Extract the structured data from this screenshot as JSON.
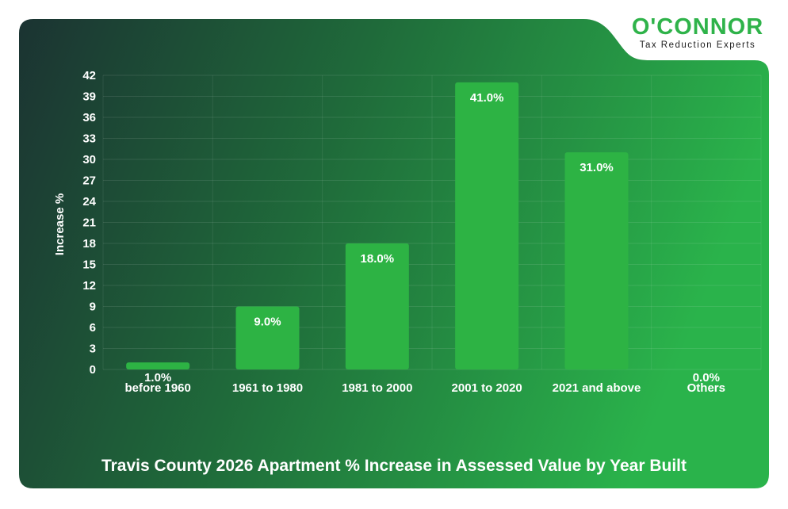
{
  "logo": {
    "name": "O'CONNOR",
    "tagline": "Tax Reduction Experts"
  },
  "colors": {
    "bar": "#2db344",
    "bg_dark": "#1b3332",
    "bg_green": "#2ab34b",
    "brand": "#2fb34a"
  },
  "chart_data": {
    "type": "bar",
    "title": "Travis County 2026 Apartment % Increase in Assessed Value by Year Built",
    "xlabel": "",
    "ylabel": "Increase %",
    "categories": [
      "before 1960",
      "1961 to 1980",
      "1981 to 2000",
      "2001 to 2020",
      "2021 and above",
      "Others"
    ],
    "values": [
      1.0,
      9.0,
      18.0,
      41.0,
      31.0,
      0.0
    ],
    "data_labels": [
      "1.0%",
      "9.0%",
      "18.0%",
      "41.0%",
      "31.0%",
      "0.0%"
    ],
    "yticks": [
      0,
      3,
      6,
      9,
      12,
      15,
      18,
      21,
      24,
      27,
      30,
      33,
      36,
      39,
      42
    ],
    "ylim": [
      0,
      42
    ],
    "grid": true
  }
}
